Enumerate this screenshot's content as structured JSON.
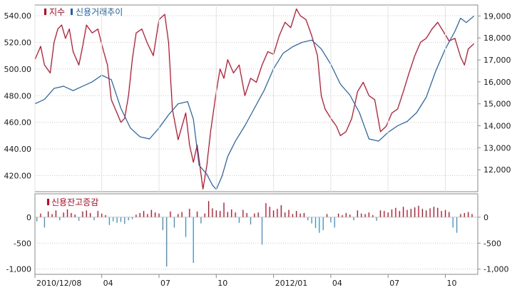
{
  "colors": {
    "index_line": "#d4001a",
    "credit_line": "#1a5fb4",
    "positive_bar": "#d4001a",
    "negative_bar": "#3a8fd0",
    "grid": "#c9c9c9",
    "frame": "#8a8a8a",
    "axis_text": "#1a1a1a"
  },
  "chart_data": [
    {
      "type": "line",
      "legend": [
        "지수",
        "신용거래추이"
      ],
      "y_left": {
        "ticks": [
          "540.00",
          "520.00",
          "500.00",
          "480.00",
          "460.00",
          "440.00",
          "420.00"
        ],
        "range": [
          408,
          548
        ]
      },
      "y_right": {
        "ticks": [
          "19,000",
          "18,000",
          "17,000",
          "16,000",
          "15,000",
          "14,000",
          "13,000",
          "12,000"
        ],
        "range": [
          11000,
          19500
        ]
      },
      "grid": true,
      "x_range": [
        0,
        23.2
      ],
      "series": [
        {
          "name": "지수",
          "axis": "left",
          "x": [
            0,
            0.3,
            0.5,
            0.8,
            1.0,
            1.2,
            1.4,
            1.6,
            1.8,
            2.0,
            2.3,
            2.5,
            2.7,
            3.0,
            3.3,
            3.6,
            3.8,
            4.0,
            4.3,
            4.5,
            4.7,
            4.9,
            5.1,
            5.3,
            5.6,
            5.9,
            6.2,
            6.5,
            6.8,
            7.0,
            7.2,
            7.5,
            7.7,
            7.9,
            8.1,
            8.3,
            8.5,
            8.8,
            9.0,
            9.2,
            9.5,
            9.7,
            9.9,
            10.1,
            10.4,
            10.7,
            11.0,
            11.3,
            11.6,
            11.9,
            12.2,
            12.5,
            12.8,
            13.1,
            13.4,
            13.7,
            13.9,
            14.2,
            14.5,
            14.8,
            15.0,
            15.2,
            15.5,
            15.8,
            16.0,
            16.3,
            16.6,
            16.9,
            17.2,
            17.5,
            17.8,
            18.1,
            18.4,
            18.7,
            19.0,
            19.3,
            19.6,
            19.9,
            20.2,
            20.5,
            20.8,
            21.1,
            21.4,
            21.7,
            22.0,
            22.3,
            22.5,
            22.7,
            23.0
          ],
          "values": [
            507,
            517,
            503,
            497,
            520,
            530,
            533,
            523,
            530,
            513,
            503,
            517,
            533,
            527,
            530,
            513,
            503,
            477,
            467,
            460,
            463,
            480,
            507,
            527,
            530,
            519,
            510,
            537,
            541,
            520,
            470,
            447,
            457,
            467,
            443,
            430,
            443,
            410,
            427,
            453,
            483,
            500,
            493,
            507,
            497,
            503,
            480,
            493,
            490,
            503,
            513,
            511,
            525,
            535,
            531,
            545,
            540,
            537,
            525,
            510,
            480,
            470,
            463,
            457,
            450,
            453,
            463,
            483,
            490,
            480,
            477,
            453,
            457,
            467,
            470,
            483,
            497,
            510,
            520,
            523,
            530,
            535,
            528,
            521,
            523,
            509,
            503,
            515,
            519
          ]
        },
        {
          "name": "신용거래추이",
          "axis": "right",
          "x": [
            0,
            0.5,
            1.0,
            1.5,
            2.0,
            2.5,
            3.0,
            3.5,
            4.0,
            4.5,
            5.0,
            5.5,
            6.0,
            6.5,
            7.0,
            7.5,
            8.0,
            8.3,
            8.6,
            9.0,
            9.3,
            9.5,
            9.8,
            10.1,
            10.5,
            11.0,
            11.5,
            12.0,
            12.5,
            13.0,
            13.5,
            14.0,
            14.5,
            15.0,
            15.5,
            16.0,
            16.5,
            17.0,
            17.5,
            18.0,
            18.5,
            19.0,
            19.5,
            20.0,
            20.5,
            21.0,
            21.5,
            22.0,
            22.3,
            22.6,
            23.0
          ],
          "values": [
            15000,
            15200,
            15700,
            15800,
            15600,
            15800,
            16000,
            16300,
            16100,
            14800,
            13900,
            13500,
            13400,
            13900,
            14500,
            15000,
            15100,
            14300,
            12200,
            11800,
            11300,
            11100,
            11700,
            12600,
            13300,
            14000,
            14800,
            15600,
            16600,
            17300,
            17600,
            17800,
            17900,
            17500,
            16800,
            15900,
            15400,
            14600,
            13400,
            13300,
            13700,
            14000,
            14200,
            14600,
            15300,
            16500,
            17500,
            18300,
            18900,
            18700,
            19000
          ]
        }
      ]
    },
    {
      "type": "bar",
      "legend": [
        "신용잔고증감"
      ],
      "y_left": {
        "ticks": [
          "0",
          "-500",
          "-1,000"
        ],
        "range": [
          -1100,
          450
        ]
      },
      "y_right": {
        "ticks": [
          "0",
          "-500",
          "-1,000"
        ],
        "range": [
          -1100,
          450
        ]
      },
      "x_ticks": [
        "2010/12/08",
        "04",
        "07",
        "10",
        "2012/01",
        "04",
        "07",
        "10"
      ],
      "x_range": [
        0,
        23.2
      ],
      "grid": true,
      "series": [
        {
          "name": "신용잔고증감",
          "x": [
            0.1,
            0.3,
            0.5,
            0.7,
            0.9,
            1.1,
            1.3,
            1.5,
            1.7,
            1.9,
            2.1,
            2.3,
            2.5,
            2.7,
            2.9,
            3.1,
            3.3,
            3.5,
            3.7,
            3.9,
            4.1,
            4.3,
            4.5,
            4.7,
            4.9,
            5.1,
            5.3,
            5.5,
            5.7,
            5.9,
            6.1,
            6.3,
            6.5,
            6.7,
            6.9,
            7.1,
            7.3,
            7.5,
            7.7,
            7.9,
            8.1,
            8.3,
            8.5,
            8.7,
            8.9,
            9.1,
            9.3,
            9.5,
            9.7,
            9.9,
            10.1,
            10.3,
            10.5,
            10.7,
            10.9,
            11.1,
            11.3,
            11.5,
            11.7,
            11.9,
            12.1,
            12.3,
            12.5,
            12.7,
            12.9,
            13.1,
            13.3,
            13.5,
            13.7,
            13.9,
            14.1,
            14.3,
            14.5,
            14.7,
            14.9,
            15.1,
            15.3,
            15.5,
            15.7,
            15.9,
            16.1,
            16.3,
            16.5,
            16.7,
            16.9,
            17.1,
            17.3,
            17.5,
            17.7,
            17.9,
            18.1,
            18.3,
            18.5,
            18.7,
            18.9,
            19.1,
            19.3,
            19.5,
            19.7,
            19.9,
            20.1,
            20.3,
            20.5,
            20.7,
            20.9,
            21.1,
            21.3,
            21.5,
            21.7,
            21.9,
            22.1,
            22.3,
            22.5,
            22.7,
            22.9
          ],
          "values": [
            -80,
            70,
            -200,
            110,
            60,
            130,
            -60,
            90,
            150,
            80,
            50,
            -70,
            110,
            130,
            80,
            -60,
            120,
            70,
            40,
            -150,
            -80,
            -110,
            -90,
            -130,
            -60,
            -40,
            50,
            80,
            120,
            60,
            140,
            90,
            70,
            -250,
            -950,
            110,
            -200,
            60,
            100,
            -380,
            160,
            -880,
            110,
            -120,
            70,
            310,
            170,
            130,
            120,
            280,
            100,
            150,
            90,
            -110,
            140,
            80,
            -140,
            70,
            90,
            -530,
            270,
            200,
            130,
            160,
            230,
            90,
            140,
            60,
            120,
            70,
            80,
            -60,
            -120,
            -210,
            -300,
            -250,
            60,
            -100,
            -200,
            70,
            40,
            80,
            50,
            -60,
            130,
            70,
            60,
            90,
            40,
            -70,
            130,
            120,
            90,
            150,
            180,
            120,
            200,
            140,
            160,
            190,
            220,
            160,
            130,
            170,
            200,
            180,
            120,
            140,
            100,
            -200,
            -300,
            60,
            80,
            100,
            60
          ]
        }
      ]
    }
  ]
}
